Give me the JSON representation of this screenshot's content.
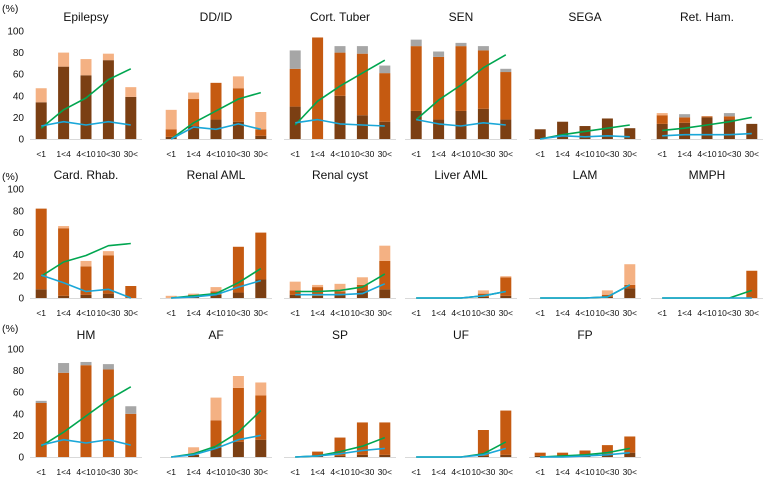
{
  "unit_label": "(%)",
  "colors": {
    "dark": "#7b3f13",
    "orange": "#c55a11",
    "light": "#f4b183",
    "gray": "#a6a6a6",
    "green": "#00a650",
    "blue": "#1aa7d8",
    "axis": "#d9d9d9"
  },
  "chart_data": {
    "type": "bar",
    "description_layers": [
      "dark",
      "orange",
      "light",
      "gray"
    ],
    "categories": [
      "<1",
      "1<4",
      "4<10",
      "10<30",
      "30<"
    ],
    "ylim": [
      0,
      100
    ],
    "yticks": [
      0,
      20,
      40,
      60,
      80,
      100
    ],
    "panels": [
      {
        "title": "Epilepsy",
        "show_y": true,
        "dark": [
          34,
          67,
          59,
          73,
          39
        ],
        "orange": [
          0,
          0,
          0,
          0,
          0
        ],
        "light": [
          13,
          13,
          15,
          6,
          9
        ],
        "gray": [
          0,
          0,
          0,
          0,
          0
        ],
        "green": [
          10,
          27,
          38,
          55,
          65
        ],
        "blue": [
          12,
          16,
          13,
          16,
          13
        ]
      },
      {
        "title": "DD/ID",
        "show_y": false,
        "dark": [
          2,
          12,
          18,
          16,
          3
        ],
        "orange": [
          7,
          25,
          34,
          31,
          6
        ],
        "light": [
          18,
          6,
          0,
          11,
          16
        ],
        "gray": [
          0,
          0,
          0,
          0,
          0
        ],
        "green": [
          0,
          15,
          26,
          37,
          43
        ],
        "blue": [
          0,
          11,
          9,
          14,
          9
        ]
      },
      {
        "title": "Cort. Tuber",
        "show_y": false,
        "dark": [
          30,
          0,
          40,
          22,
          16
        ],
        "orange": [
          35,
          94,
          40,
          57,
          45
        ],
        "light": [
          0,
          0,
          0,
          0,
          0
        ],
        "gray": [
          17,
          0,
          6,
          7,
          7
        ],
        "green": [
          13,
          35,
          49,
          61,
          73
        ],
        "blue": [
          15,
          18,
          14,
          13,
          12
        ]
      },
      {
        "title": "SEN",
        "show_y": false,
        "dark": [
          26,
          18,
          26,
          28,
          18
        ],
        "orange": [
          60,
          58,
          60,
          54,
          44
        ],
        "light": [
          0,
          0,
          0,
          0,
          0
        ],
        "gray": [
          6,
          5,
          3,
          4,
          3
        ],
        "green": [
          18,
          36,
          50,
          66,
          78
        ],
        "blue": [
          18,
          14,
          12,
          15,
          13
        ]
      },
      {
        "title": "SEGA",
        "show_y": false,
        "dark": [
          9,
          16,
          12,
          19,
          10
        ],
        "orange": [
          0,
          0,
          0,
          0,
          0
        ],
        "light": [
          0,
          0,
          0,
          0,
          0
        ],
        "gray": [
          0,
          0,
          0,
          0,
          0
        ],
        "green": [
          0,
          4,
          7,
          10,
          13
        ],
        "blue": [
          0,
          3,
          2,
          3,
          2
        ]
      },
      {
        "title": "Ret. Ham.",
        "show_y": false,
        "dark": [
          14,
          15,
          20,
          18,
          14
        ],
        "orange": [
          8,
          5,
          1,
          3,
          0
        ],
        "light": [
          2,
          0,
          0,
          0,
          0
        ],
        "gray": [
          0,
          3,
          0,
          3,
          0
        ],
        "green": [
          8,
          10,
          13,
          16,
          20
        ],
        "blue": [
          3,
          4,
          4,
          4,
          5
        ]
      },
      {
        "title": "Card. Rhab.",
        "show_y": true,
        "dark": [
          8,
          2,
          3,
          4,
          0
        ],
        "orange": [
          74,
          62,
          26,
          35,
          11
        ],
        "light": [
          0,
          2,
          5,
          4,
          0
        ],
        "gray": [
          0,
          0,
          0,
          0,
          0
        ],
        "green": [
          20,
          33,
          39,
          48,
          50
        ],
        "blue": [
          21,
          14,
          6,
          8,
          0
        ]
      },
      {
        "title": "Renal AML",
        "show_y": false,
        "dark": [
          0,
          1,
          3,
          5,
          17
        ],
        "orange": [
          0,
          2,
          3,
          42,
          43
        ],
        "light": [
          2,
          1,
          4,
          0,
          0
        ],
        "gray": [
          0,
          0,
          0,
          0,
          0
        ],
        "green": [
          0,
          2,
          4,
          14,
          27
        ],
        "blue": [
          0,
          1,
          3,
          10,
          16
        ]
      },
      {
        "title": "Renal cyst",
        "show_y": false,
        "dark": [
          3,
          2,
          4,
          7,
          8
        ],
        "orange": [
          4,
          8,
          2,
          5,
          26
        ],
        "light": [
          8,
          2,
          7,
          7,
          14
        ],
        "gray": [
          0,
          0,
          0,
          0,
          0
        ],
        "green": [
          6,
          6,
          7,
          10,
          22
        ],
        "blue": [
          3,
          3,
          3,
          4,
          13
        ]
      },
      {
        "title": "Liver AML",
        "show_y": false,
        "dark": [
          0,
          0,
          0,
          1,
          2
        ],
        "orange": [
          0,
          0,
          0,
          3,
          17
        ],
        "light": [
          0,
          0,
          0,
          3,
          1
        ],
        "gray": [
          0,
          0,
          0,
          0,
          0
        ],
        "green": [
          0,
          0,
          0,
          2,
          6
        ],
        "blue": [
          0,
          0,
          0,
          2,
          6
        ]
      },
      {
        "title": "LAM",
        "show_y": false,
        "dark": [
          0,
          0,
          0,
          1,
          9
        ],
        "orange": [
          0,
          0,
          0,
          2,
          3
        ],
        "light": [
          0,
          0,
          0,
          4,
          19
        ],
        "gray": [
          0,
          0,
          0,
          0,
          0
        ],
        "green": [
          0,
          0,
          0,
          1,
          12
        ],
        "blue": [
          0,
          0,
          0,
          1,
          12
        ]
      },
      {
        "title": "MMPH",
        "show_y": false,
        "dark": [
          0,
          0,
          0,
          0,
          0
        ],
        "orange": [
          0,
          0,
          0,
          0,
          25
        ],
        "light": [
          0,
          0,
          0,
          0,
          0
        ],
        "gray": [
          0,
          0,
          0,
          0,
          0
        ],
        "green": [
          0,
          0,
          0,
          0,
          7
        ],
        "blue": [
          0,
          0,
          0,
          0,
          0
        ]
      },
      {
        "title": "HM",
        "show_y": true,
        "dark": [
          0,
          0,
          0,
          0,
          0
        ],
        "orange": [
          50,
          78,
          85,
          81,
          40
        ],
        "light": [
          0,
          0,
          0,
          0,
          0
        ],
        "gray": [
          2,
          9,
          3,
          5,
          7
        ],
        "green": [
          10,
          23,
          38,
          53,
          65
        ],
        "blue": [
          11,
          16,
          13,
          16,
          11
        ]
      },
      {
        "title": "AF",
        "show_y": false,
        "dark": [
          0,
          2,
          9,
          14,
          16
        ],
        "orange": [
          0,
          0,
          25,
          50,
          41
        ],
        "light": [
          0,
          7,
          21,
          11,
          12
        ],
        "gray": [
          0,
          0,
          0,
          0,
          0
        ],
        "green": [
          0,
          3,
          10,
          23,
          43
        ],
        "blue": [
          0,
          2,
          8,
          16,
          20
        ]
      },
      {
        "title": "SP",
        "show_y": false,
        "dark": [
          0,
          1,
          1,
          2,
          2
        ],
        "orange": [
          0,
          4,
          17,
          30,
          30
        ],
        "light": [
          0,
          0,
          0,
          0,
          0
        ],
        "gray": [
          0,
          0,
          0,
          0,
          0
        ],
        "green": [
          0,
          1,
          5,
          10,
          18
        ],
        "blue": [
          0,
          1,
          3,
          6,
          8
        ]
      },
      {
        "title": "UF",
        "show_y": false,
        "dark": [
          0,
          0,
          0,
          1,
          2
        ],
        "orange": [
          0,
          0,
          0,
          24,
          41
        ],
        "light": [
          0,
          0,
          0,
          0,
          0
        ],
        "gray": [
          0,
          0,
          0,
          0,
          0
        ],
        "green": [
          0,
          0,
          0,
          3,
          14
        ],
        "blue": [
          0,
          0,
          0,
          2,
          8
        ]
      },
      {
        "title": "FP",
        "show_y": false,
        "dark": [
          1,
          1,
          2,
          3,
          4
        ],
        "orange": [
          3,
          3,
          4,
          8,
          15
        ],
        "light": [
          0,
          0,
          0,
          0,
          0
        ],
        "gray": [
          0,
          0,
          0,
          0,
          0
        ],
        "green": [
          0,
          1,
          2,
          4,
          8
        ],
        "blue": [
          0,
          0,
          1,
          2,
          4
        ]
      }
    ]
  }
}
